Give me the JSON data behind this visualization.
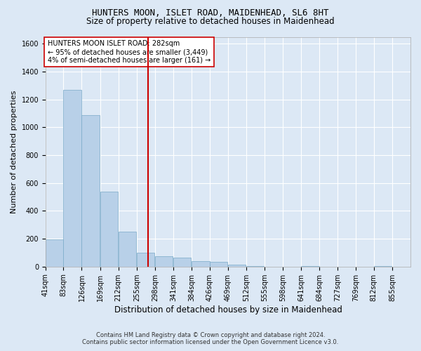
{
  "title": "HUNTERS MOON, ISLET ROAD, MAIDENHEAD, SL6 8HT",
  "subtitle": "Size of property relative to detached houses in Maidenhead",
  "xlabel": "Distribution of detached houses by size in Maidenhead",
  "ylabel": "Number of detached properties",
  "footer_line1": "Contains HM Land Registry data © Crown copyright and database right 2024.",
  "footer_line2": "Contains public sector information licensed under the Open Government Licence v3.0.",
  "annotation_line1": "HUNTERS MOON ISLET ROAD: 282sqm",
  "annotation_line2": "← 95% of detached houses are smaller (3,449)",
  "annotation_line3": "4% of semi-detached houses are larger (161) →",
  "subject_size": 282,
  "bin_edges": [
    41,
    83,
    126,
    169,
    212,
    255,
    298,
    341,
    384,
    426,
    469,
    512,
    555,
    598,
    641,
    684,
    727,
    769,
    812,
    855,
    898
  ],
  "bin_counts": [
    195,
    1270,
    1090,
    540,
    250,
    100,
    75,
    65,
    40,
    35,
    15,
    5,
    0,
    0,
    5,
    0,
    0,
    0,
    5,
    0
  ],
  "bar_color": "#b8d0e8",
  "bar_edge_color": "#7aaac8",
  "vline_color": "#cc0000",
  "bg_color": "#dce8f5",
  "annotation_box_color": "#ffffff",
  "annotation_box_edge": "#cc0000",
  "ylim": [
    0,
    1650
  ],
  "yticks": [
    0,
    200,
    400,
    600,
    800,
    1000,
    1200,
    1400,
    1600
  ],
  "grid_color": "#ffffff",
  "title_fontsize": 9,
  "subtitle_fontsize": 8.5,
  "ylabel_fontsize": 8,
  "xlabel_fontsize": 8.5,
  "tick_fontsize": 7,
  "annotation_fontsize": 7,
  "footer_fontsize": 6
}
